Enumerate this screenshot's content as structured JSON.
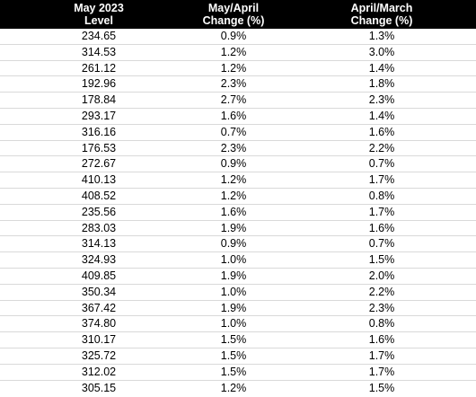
{
  "headers": [
    {
      "line1": "May 2023",
      "line2": "Level"
    },
    {
      "line1": "May/April",
      "line2": "Change (%)"
    },
    {
      "line1": "April/March",
      "line2": "Change (%)"
    }
  ],
  "rows": [
    [
      "234.65",
      "0.9%",
      "1.3%"
    ],
    [
      "314.53",
      "1.2%",
      "3.0%"
    ],
    [
      "261.12",
      "1.2%",
      "1.4%"
    ],
    [
      "192.96",
      "2.3%",
      "1.8%"
    ],
    [
      "178.84",
      "2.7%",
      "2.3%"
    ],
    [
      "293.17",
      "1.6%",
      "1.4%"
    ],
    [
      "316.16",
      "0.7%",
      "1.6%"
    ],
    [
      "176.53",
      "2.3%",
      "2.2%"
    ],
    [
      "272.67",
      "0.9%",
      "0.7%"
    ],
    [
      "410.13",
      "1.2%",
      "1.7%"
    ],
    [
      "408.52",
      "1.2%",
      "0.8%"
    ],
    [
      "235.56",
      "1.6%",
      "1.7%"
    ],
    [
      "283.03",
      "1.9%",
      "1.6%"
    ],
    [
      "314.13",
      "0.9%",
      "0.7%"
    ],
    [
      "324.93",
      "1.0%",
      "1.5%"
    ],
    [
      "409.85",
      "1.9%",
      "2.0%"
    ],
    [
      "350.34",
      "1.0%",
      "2.2%"
    ],
    [
      "367.42",
      "1.9%",
      "2.3%"
    ],
    [
      "374.80",
      "1.0%",
      "0.8%"
    ],
    [
      "310.17",
      "1.5%",
      "1.6%"
    ],
    [
      "325.72",
      "1.5%",
      "1.7%"
    ],
    [
      "312.02",
      "1.5%",
      "1.7%"
    ],
    [
      "305.15",
      "1.2%",
      "1.5%"
    ]
  ]
}
